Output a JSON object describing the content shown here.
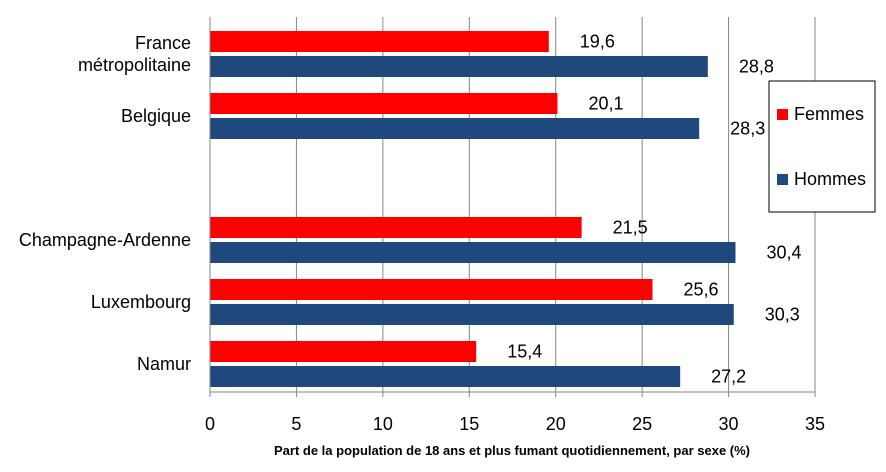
{
  "chart_data": {
    "type": "bar",
    "orientation": "horizontal",
    "categories": [
      [
        "France",
        "métropolitaine"
      ],
      [
        "Belgique"
      ],
      [
        "Champagne-Ardenne"
      ],
      [
        "Luxembourg"
      ],
      [
        "Namur"
      ]
    ],
    "series": [
      {
        "name": "Femmes",
        "color": "#ff0000",
        "values": [
          19.6,
          20.1,
          21.5,
          25.6,
          15.4
        ],
        "labels": [
          "19,6",
          "20,1",
          "21,5",
          "25,6",
          "15,4"
        ]
      },
      {
        "name": "Hommes",
        "color": "#1f497d",
        "values": [
          28.8,
          28.3,
          30.4,
          30.3,
          27.2
        ],
        "labels": [
          "28,8",
          "28,3",
          "30,4",
          "30,3",
          "27,2"
        ]
      }
    ],
    "xlim": [
      0,
      35
    ],
    "xticks": [
      "0",
      "5",
      "10",
      "15",
      "20",
      "25",
      "30",
      "35"
    ],
    "xlabel": "Part de la population de 18 ans et plus fumant quotidiennement, par sexe (%)",
    "grid": true,
    "legend_position": "right"
  }
}
